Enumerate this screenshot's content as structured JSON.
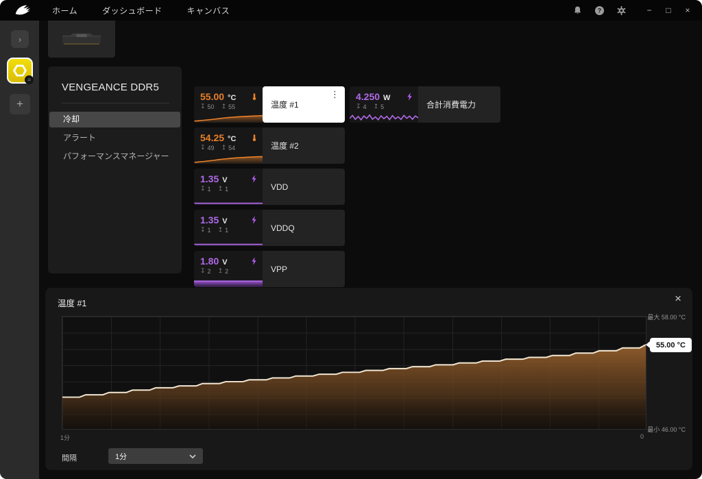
{
  "titlebar": {
    "nav": [
      {
        "label": "ホーム"
      },
      {
        "label": "ダッシュボード"
      },
      {
        "label": "キャンバス"
      }
    ]
  },
  "window_controls": {
    "minimize": "−",
    "maximize": "□",
    "close": "×"
  },
  "icons": {
    "expand": "›",
    "add": "+",
    "kebab": "⋮",
    "panel_close": "×",
    "min_marker": "↧",
    "max_marker": "↥",
    "home_badge": "⌂"
  },
  "colors": {
    "temp": "#e8802a",
    "volt": "#b06ae8",
    "device_tile": "#e9d70c",
    "graph_line": "#f3e7d3",
    "graph_fill": "#96602d",
    "selected_bg": "#ffffff"
  },
  "device_panel": {
    "title": "VENGEANCE DDR5",
    "menu": [
      {
        "label": "冷却",
        "selected": true
      },
      {
        "label": "アラート",
        "selected": false
      },
      {
        "label": "パフォーマンスマネージャー",
        "selected": false
      }
    ]
  },
  "tiles": [
    {
      "id": "temp1",
      "value": "55.00",
      "unit": "°C",
      "min": "50",
      "max": "55",
      "label": "温度 #1",
      "selected": true,
      "spark": [
        0.16,
        0.2,
        0.25,
        0.3,
        0.36,
        0.42,
        0.48,
        0.53,
        0.57,
        0.61,
        0.64,
        0.67,
        0.69,
        0.71,
        0.73
      ]
    },
    {
      "id": "temp2",
      "value": "54.25",
      "unit": "°C",
      "min": "49",
      "max": "54",
      "label": "温度 #2",
      "selected": false,
      "spark": [
        0.14,
        0.19,
        0.24,
        0.3,
        0.36,
        0.43,
        0.49,
        0.54,
        0.59,
        0.63,
        0.66,
        0.69,
        0.71,
        0.73,
        0.75
      ]
    },
    {
      "id": "vdd",
      "value": "1.35",
      "unit": "V",
      "min": "1",
      "max": "1",
      "label": "VDD",
      "selected": false,
      "spark": [
        0.3,
        0.3
      ]
    },
    {
      "id": "vddq",
      "value": "1.35",
      "unit": "V",
      "min": "1",
      "max": "1",
      "label": "VDDQ",
      "selected": false,
      "spark": [
        0.3,
        0.3
      ]
    },
    {
      "id": "vpp",
      "value": "1.80",
      "unit": "V",
      "min": "2",
      "max": "2",
      "label": "VPP",
      "selected": false,
      "spark": [
        0.8,
        0.8
      ]
    },
    {
      "id": "power",
      "value": "4.250",
      "unit": "W",
      "min": "4",
      "max": "5",
      "label": "合計消費電力",
      "selected": false,
      "spark": [
        0.45,
        0.75,
        0.35,
        0.65,
        0.3,
        0.7,
        0.45,
        0.8,
        0.35,
        0.6,
        0.3,
        0.72,
        0.42,
        0.66,
        0.32,
        0.74,
        0.4,
        0.62,
        0.33,
        0.76,
        0.45,
        0.68,
        0.35,
        0.7,
        0.5
      ]
    }
  ],
  "graph": {
    "title": "温度 #1",
    "close": "×",
    "interval_label": "間隔",
    "interval_value": "1分"
  },
  "chart_data": {
    "type": "area",
    "title": "温度 #1",
    "unit": "°C",
    "ylim": [
      46,
      58
    ],
    "y_max_label": "最大 58.00 °C",
    "y_min_label": "最小 46.00 °C",
    "current_value": 55.0,
    "current_label": "55.00 °C",
    "x_axis_left_label": "1分",
    "x_axis_right_label": "0",
    "grid": true,
    "legend": false,
    "points": [
      [
        0,
        49.4
      ],
      [
        4,
        49.65
      ],
      [
        8,
        49.9
      ],
      [
        12,
        50.15
      ],
      [
        16,
        50.4
      ],
      [
        20,
        50.6
      ],
      [
        24,
        50.85
      ],
      [
        28,
        51.05
      ],
      [
        32,
        51.25
      ],
      [
        36,
        51.45
      ],
      [
        40,
        51.65
      ],
      [
        44,
        51.85
      ],
      [
        48,
        52.05
      ],
      [
        52,
        52.25
      ],
      [
        56,
        52.45
      ],
      [
        60,
        52.65
      ],
      [
        64,
        52.85
      ],
      [
        68,
        53.05
      ],
      [
        72,
        53.25
      ],
      [
        76,
        53.45
      ],
      [
        80,
        53.65
      ],
      [
        84,
        53.85
      ],
      [
        88,
        54.1
      ],
      [
        92,
        54.35
      ],
      [
        96,
        54.65
      ],
      [
        100,
        55.0
      ]
    ]
  }
}
